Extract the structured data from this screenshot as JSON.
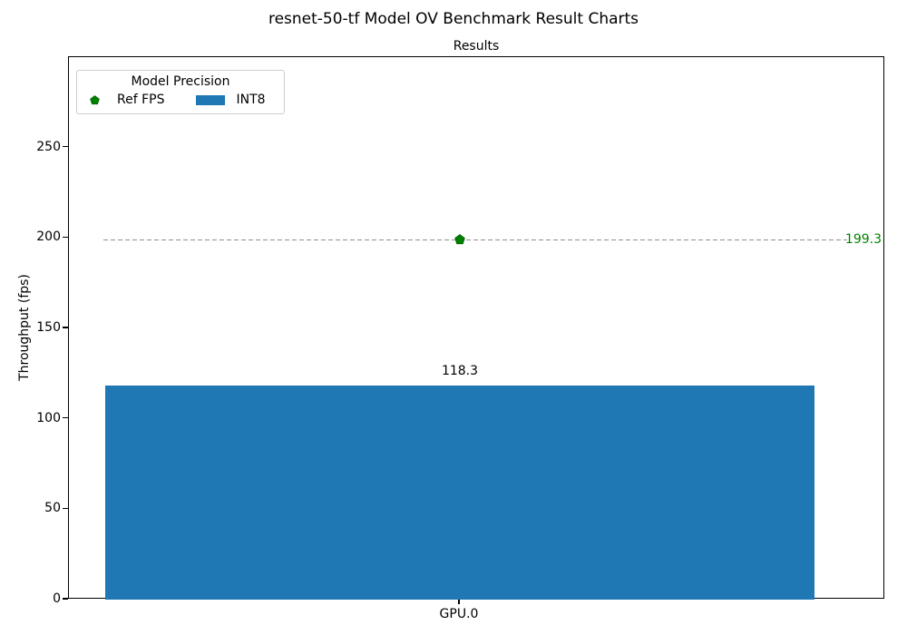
{
  "figure": {
    "suptitle": "resnet-50-tf Model OV Benchmark Result Charts"
  },
  "legend": {
    "title": "Model Precision",
    "entries": [
      {
        "label": "Ref FPS",
        "marker": "pentagon-marker",
        "color": "#008000"
      },
      {
        "label": "INT8",
        "marker": "bar-swatch",
        "color": "#1f77b4"
      }
    ]
  },
  "chart_data": {
    "type": "bar",
    "suptitle": "resnet-50-tf Model OV Benchmark Result Charts",
    "title": "Results",
    "categories": [
      "GPU.0"
    ],
    "series": [
      {
        "name": "INT8",
        "type": "bar",
        "values": [
          118.3
        ],
        "data_labels": [
          "118.3"
        ],
        "color": "#1f77b4"
      },
      {
        "name": "Ref FPS",
        "type": "reference_line",
        "values": [
          199.3
        ],
        "data_labels": [
          "199.3"
        ],
        "color": "#008000",
        "line_color": "#909090",
        "line_style": "dashed",
        "marker": "pentagon"
      }
    ],
    "xlabel": "",
    "ylabel": "Throughput (fps)",
    "ylim": [
      0,
      300
    ],
    "yticks": [
      0,
      50,
      100,
      150,
      200,
      250
    ],
    "grid": false,
    "legend_title": "Model Precision",
    "legend_position": "upper left"
  }
}
